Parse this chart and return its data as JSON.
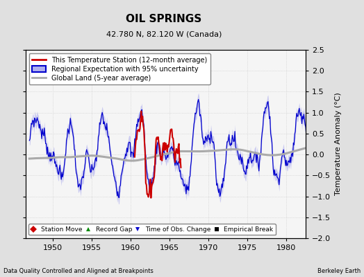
{
  "title": "OIL SPRINGS",
  "subtitle": "42.780 N, 82.120 W (Canada)",
  "xlabel_left": "Data Quality Controlled and Aligned at Breakpoints",
  "xlabel_right": "Berkeley Earth",
  "ylabel": "Temperature Anomaly (°C)",
  "xlim": [
    1946.5,
    1982.5
  ],
  "ylim": [
    -2.0,
    2.5
  ],
  "yticks": [
    -2,
    -1.5,
    -1,
    -0.5,
    0,
    0.5,
    1,
    1.5,
    2,
    2.5
  ],
  "xticks": [
    1950,
    1955,
    1960,
    1965,
    1970,
    1975,
    1980
  ],
  "background_color": "#e0e0e0",
  "plot_bg_color": "#f5f5f5",
  "grid_color": "#c8c8c8",
  "regional_line_color": "#0000cc",
  "regional_fill_color": "#b0b0ee",
  "station_line_color": "#cc0000",
  "global_line_color": "#aaaaaa",
  "legend_items": [
    {
      "label": "This Temperature Station (12-month average)",
      "color": "#cc0000",
      "lw": 2
    },
    {
      "label": "Regional Expectation with 95% uncertainty",
      "color": "#0000cc",
      "lw": 2
    },
    {
      "label": "Global Land (5-year average)",
      "color": "#aaaaaa",
      "lw": 2
    }
  ],
  "marker_legend": [
    {
      "label": "Station Move",
      "color": "#cc0000",
      "marker": "D"
    },
    {
      "label": "Record Gap",
      "color": "#008800",
      "marker": "^"
    },
    {
      "label": "Time of Obs. Change",
      "color": "#0000cc",
      "marker": "v"
    },
    {
      "label": "Empirical Break",
      "color": "#000000",
      "marker": "s"
    }
  ]
}
